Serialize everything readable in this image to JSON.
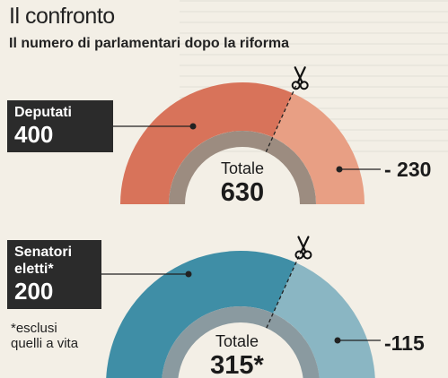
{
  "title": "Il confronto",
  "subtitle": "Il numero di parlamentari dopo la riforma",
  "deputati": {
    "name": "Deputati",
    "value": "400",
    "total_label": "Totale",
    "total_value": "630",
    "cut": "- 230"
  },
  "senatori": {
    "name": "Senatori\neletti*",
    "value": "200",
    "total_label": "Totale",
    "total_value": "315*",
    "cut": "-115"
  },
  "footnote": "*esclusi\nquelli a vita",
  "colors": {
    "dep_kept": "#d8735a",
    "dep_cut": "#e89f84",
    "dep_inner": "#9c8c80",
    "sen_kept": "#3f8ea6",
    "sen_cut": "#8ab6c3",
    "sen_inner": "#8a9aa0",
    "label_bg": "#2b2b2b"
  },
  "chart_data": [
    {
      "type": "pie",
      "title": "",
      "categories": [
        "Deputati",
        "- 230"
      ],
      "values": [
        400,
        230
      ],
      "total": 630
    },
    {
      "type": "pie",
      "title": "",
      "categories": [
        "Senatori eletti*",
        "-115"
      ],
      "values": [
        200,
        115
      ],
      "total": 315
    }
  ]
}
